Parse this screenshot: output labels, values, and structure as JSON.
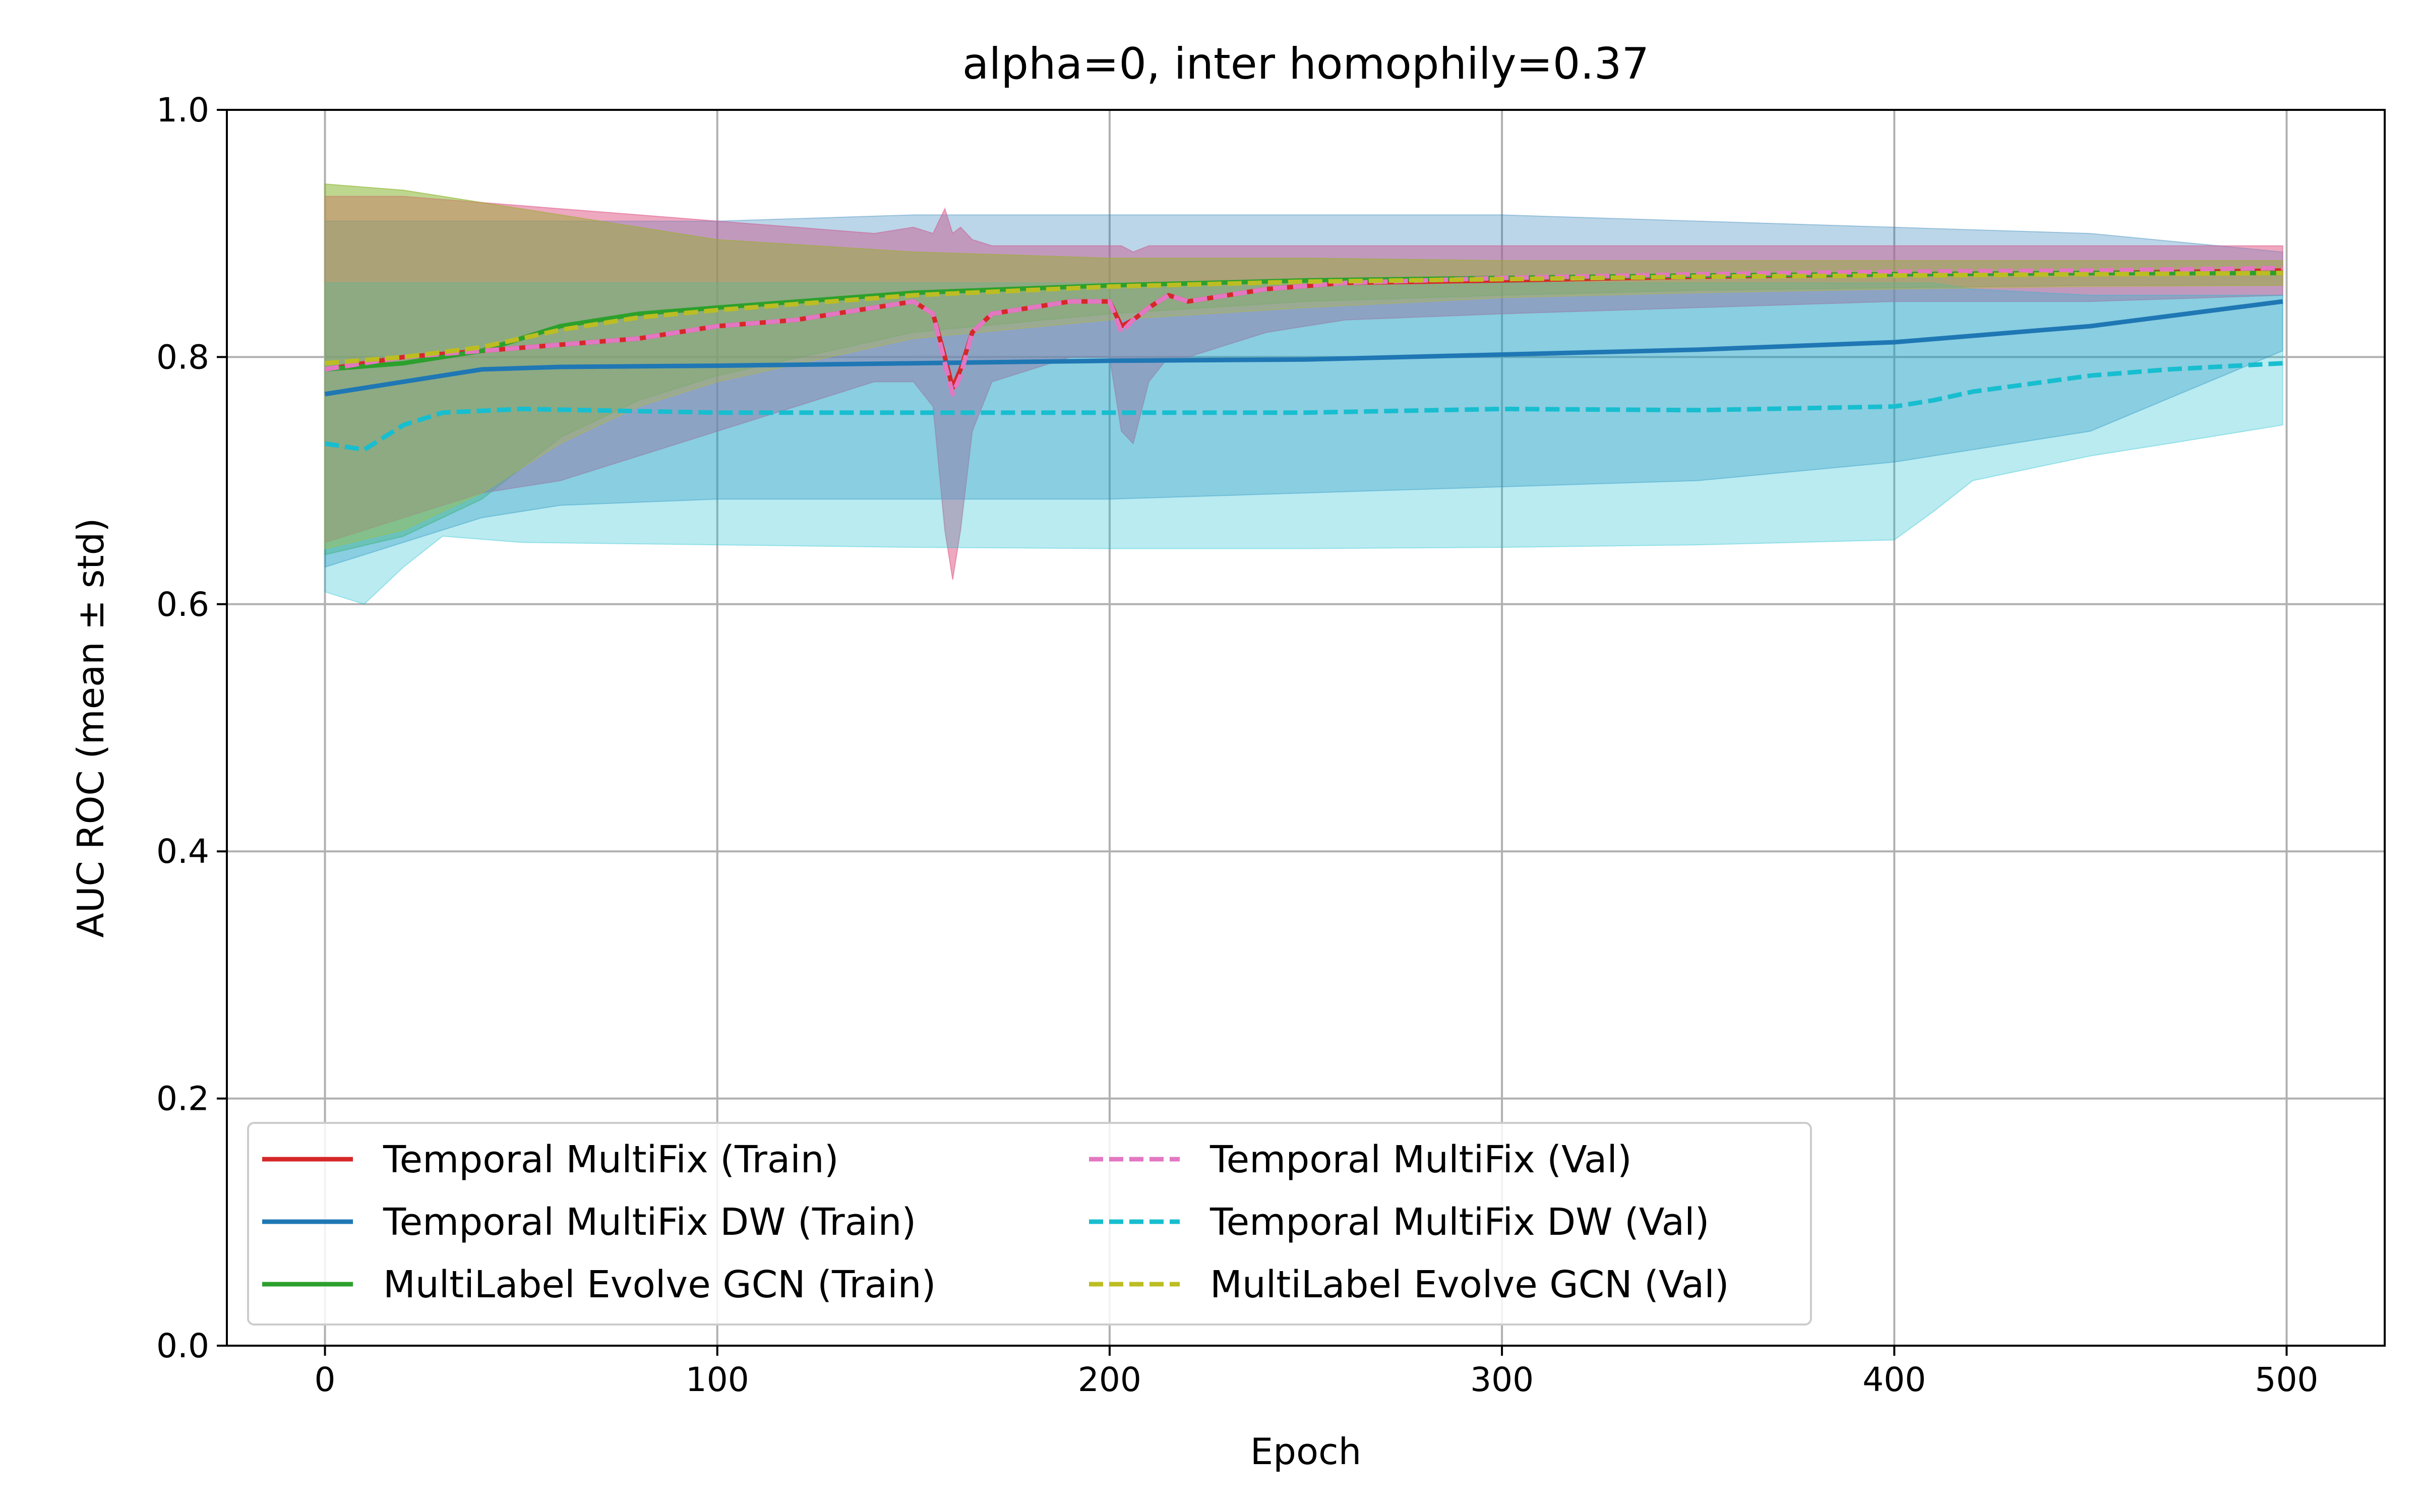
{
  "chart_data": {
    "type": "line",
    "title": "alpha=0, inter homophily=0.37",
    "xlabel": "Epoch",
    "ylabel": "AUC ROC (mean ± std)",
    "xlim": [
      -25,
      525
    ],
    "ylim": [
      0.0,
      1.0
    ],
    "xticks": [
      0,
      100,
      200,
      300,
      400,
      500
    ],
    "yticks": [
      0.0,
      0.2,
      0.4,
      0.6,
      0.8,
      1.0
    ],
    "xtick_labels": [
      "0",
      "100",
      "200",
      "300",
      "400",
      "500"
    ],
    "ytick_labels": [
      "0.0",
      "0.2",
      "0.4",
      "0.6",
      "0.8",
      "1.0"
    ],
    "grid": true,
    "legend_position": "lower-left",
    "series": [
      {
        "name": "Temporal MultiFix (Train)",
        "color": "#d62728",
        "dash": "solid",
        "x": [
          0,
          20,
          40,
          60,
          80,
          100,
          120,
          140,
          150,
          155,
          158,
          160,
          162,
          165,
          170,
          180,
          190,
          200,
          203,
          206,
          210,
          215,
          220,
          240,
          260,
          300,
          350,
          400,
          450,
          499
        ],
        "mean": [
          0.79,
          0.8,
          0.805,
          0.81,
          0.815,
          0.825,
          0.83,
          0.84,
          0.845,
          0.835,
          0.8,
          0.775,
          0.79,
          0.82,
          0.835,
          0.84,
          0.845,
          0.845,
          0.825,
          0.83,
          0.84,
          0.85,
          0.845,
          0.855,
          0.86,
          0.862,
          0.865,
          0.867,
          0.868,
          0.87
        ],
        "upper": [
          0.93,
          0.93,
          0.925,
          0.92,
          0.915,
          0.91,
          0.905,
          0.9,
          0.905,
          0.9,
          0.92,
          0.9,
          0.905,
          0.895,
          0.89,
          0.89,
          0.89,
          0.89,
          0.89,
          0.885,
          0.89,
          0.89,
          0.89,
          0.89,
          0.89,
          0.89,
          0.89,
          0.89,
          0.89,
          0.89
        ],
        "lower": [
          0.65,
          0.67,
          0.69,
          0.7,
          0.72,
          0.74,
          0.76,
          0.78,
          0.78,
          0.76,
          0.66,
          0.62,
          0.66,
          0.74,
          0.78,
          0.79,
          0.8,
          0.8,
          0.74,
          0.73,
          0.78,
          0.8,
          0.8,
          0.82,
          0.83,
          0.835,
          0.84,
          0.845,
          0.845,
          0.85
        ]
      },
      {
        "name": "Temporal MultiFix DW (Train)",
        "color": "#1f77b4",
        "dash": "solid",
        "x": [
          0,
          20,
          40,
          60,
          100,
          150,
          200,
          250,
          300,
          350,
          400,
          450,
          499
        ],
        "mean": [
          0.77,
          0.78,
          0.79,
          0.792,
          0.793,
          0.795,
          0.797,
          0.798,
          0.802,
          0.806,
          0.812,
          0.825,
          0.845
        ],
        "upper": [
          0.91,
          0.91,
          0.91,
          0.91,
          0.91,
          0.915,
          0.915,
          0.915,
          0.915,
          0.91,
          0.905,
          0.9,
          0.885
        ],
        "lower": [
          0.63,
          0.65,
          0.67,
          0.68,
          0.685,
          0.685,
          0.685,
          0.69,
          0.695,
          0.7,
          0.715,
          0.74,
          0.805
        ]
      },
      {
        "name": "MultiLabel Evolve GCN (Train)",
        "color": "#2ca02c",
        "dash": "solid",
        "x": [
          0,
          20,
          40,
          60,
          80,
          100,
          150,
          200,
          250,
          300,
          350,
          400,
          450,
          499
        ],
        "mean": [
          0.79,
          0.795,
          0.805,
          0.825,
          0.835,
          0.84,
          0.852,
          0.858,
          0.862,
          0.864,
          0.866,
          0.867,
          0.868,
          0.868
        ],
        "upper": [
          0.94,
          0.935,
          0.925,
          0.915,
          0.905,
          0.895,
          0.885,
          0.88,
          0.88,
          0.878,
          0.878,
          0.878,
          0.878,
          0.878
        ],
        "lower": [
          0.64,
          0.655,
          0.685,
          0.735,
          0.765,
          0.785,
          0.82,
          0.835,
          0.845,
          0.85,
          0.854,
          0.856,
          0.858,
          0.858
        ]
      },
      {
        "name": "Temporal MultiFix (Val)",
        "color": "#e377c2",
        "dash": "dashed",
        "x": [
          0,
          20,
          40,
          60,
          80,
          100,
          120,
          140,
          150,
          155,
          158,
          160,
          162,
          165,
          170,
          180,
          190,
          200,
          203,
          206,
          210,
          215,
          220,
          240,
          260,
          300,
          350,
          400,
          450,
          499
        ],
        "mean": [
          0.79,
          0.8,
          0.805,
          0.81,
          0.815,
          0.825,
          0.83,
          0.84,
          0.845,
          0.835,
          0.795,
          0.77,
          0.785,
          0.82,
          0.835,
          0.84,
          0.845,
          0.845,
          0.82,
          0.83,
          0.84,
          0.85,
          0.845,
          0.855,
          0.86,
          0.864,
          0.867,
          0.869,
          0.87,
          0.872
        ],
        "upper": [
          0.93,
          0.93,
          0.925,
          0.92,
          0.915,
          0.91,
          0.905,
          0.9,
          0.905,
          0.9,
          0.92,
          0.9,
          0.905,
          0.895,
          0.89,
          0.89,
          0.89,
          0.89,
          0.89,
          0.885,
          0.89,
          0.89,
          0.89,
          0.89,
          0.89,
          0.89,
          0.89,
          0.89,
          0.89,
          0.89
        ],
        "lower": [
          0.65,
          0.67,
          0.69,
          0.7,
          0.72,
          0.74,
          0.76,
          0.78,
          0.78,
          0.76,
          0.66,
          0.62,
          0.66,
          0.74,
          0.78,
          0.79,
          0.8,
          0.8,
          0.74,
          0.73,
          0.78,
          0.8,
          0.8,
          0.82,
          0.83,
          0.835,
          0.84,
          0.845,
          0.845,
          0.85
        ]
      },
      {
        "name": "Temporal MultiFix DW (Val)",
        "color": "#17becf",
        "dash": "dashed",
        "x": [
          0,
          10,
          20,
          30,
          50,
          100,
          150,
          200,
          250,
          300,
          350,
          400,
          410,
          420,
          450,
          470,
          499
        ],
        "mean": [
          0.73,
          0.725,
          0.745,
          0.755,
          0.758,
          0.755,
          0.755,
          0.755,
          0.755,
          0.758,
          0.757,
          0.76,
          0.765,
          0.772,
          0.785,
          0.79,
          0.795
        ],
        "upper": [
          0.86,
          0.86,
          0.86,
          0.86,
          0.86,
          0.86,
          0.86,
          0.86,
          0.86,
          0.86,
          0.86,
          0.86,
          0.86,
          0.855,
          0.85,
          0.85,
          0.85
        ],
        "lower": [
          0.61,
          0.6,
          0.63,
          0.655,
          0.65,
          0.648,
          0.646,
          0.645,
          0.645,
          0.646,
          0.648,
          0.652,
          0.675,
          0.7,
          0.72,
          0.73,
          0.745
        ]
      },
      {
        "name": "MultiLabel Evolve GCN (Val)",
        "color": "#bcbd22",
        "dash": "dashed",
        "x": [
          0,
          20,
          40,
          60,
          80,
          100,
          150,
          200,
          250,
          300,
          350,
          400,
          450,
          499
        ],
        "mean": [
          0.795,
          0.8,
          0.808,
          0.822,
          0.832,
          0.838,
          0.85,
          0.857,
          0.861,
          0.863,
          0.865,
          0.866,
          0.867,
          0.868
        ],
        "upper": [
          0.94,
          0.935,
          0.925,
          0.915,
          0.905,
          0.895,
          0.885,
          0.88,
          0.88,
          0.878,
          0.878,
          0.878,
          0.878,
          0.878
        ],
        "lower": [
          0.645,
          0.66,
          0.69,
          0.73,
          0.76,
          0.78,
          0.815,
          0.83,
          0.84,
          0.848,
          0.852,
          0.855,
          0.857,
          0.858
        ]
      }
    ]
  }
}
